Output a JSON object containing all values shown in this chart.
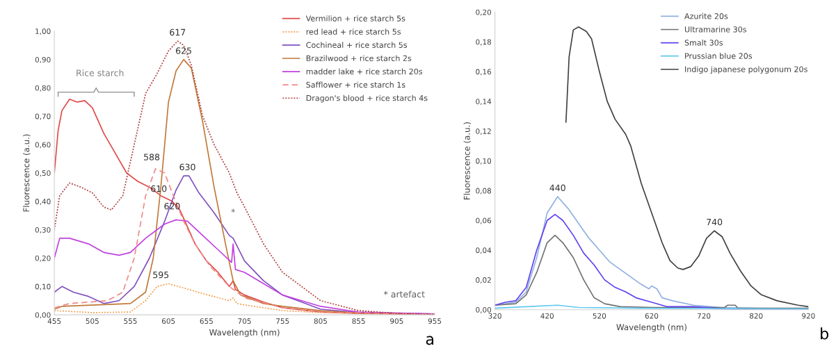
{
  "chart_data": [
    {
      "type": "line",
      "xlabel": "Wavelength (nm)",
      "ylabel": "Fluorescence (a.u.)",
      "xlim": [
        455,
        955
      ],
      "xticks": [
        455,
        505,
        555,
        605,
        655,
        705,
        755,
        805,
        855,
        905,
        955
      ],
      "ylim": [
        0,
        1.0
      ],
      "yticks": [
        {
          "value": 0,
          "label": "0,00"
        },
        {
          "value": 0.1,
          "label": "0,10"
        },
        {
          "value": 0.2,
          "label": "0,20"
        },
        {
          "value": 0.3,
          "label": "0,30"
        },
        {
          "value": 0.4,
          "label": "0,40"
        },
        {
          "value": 0.5,
          "label": "0,50"
        },
        {
          "value": 0.6,
          "label": "0,60"
        },
        {
          "value": 0.7,
          "label": "0,70"
        },
        {
          "value": 0.8,
          "label": "0,80"
        },
        {
          "value": 0.9,
          "label": "0,90"
        },
        {
          "value": 1.0,
          "label": "1,00"
        }
      ],
      "grid": false,
      "legend": "top right",
      "marker": "none",
      "series": [
        {
          "name": "Vermilion + rice starch 5s",
          "color": "#e04848",
          "line_style": "solid",
          "x": [
            455,
            460,
            465,
            475,
            485,
            495,
            505,
            520,
            535,
            550,
            565,
            580,
            595,
            610,
            620,
            630,
            640,
            655,
            670,
            685,
            690,
            693,
            705,
            730,
            755,
            805,
            855,
            955
          ],
          "values": [
            0.5,
            0.65,
            0.72,
            0.76,
            0.75,
            0.755,
            0.73,
            0.64,
            0.57,
            0.5,
            0.47,
            0.45,
            0.42,
            0.4,
            0.37,
            0.31,
            0.25,
            0.19,
            0.15,
            0.1,
            0.12,
            0.09,
            0.07,
            0.045,
            0.025,
            0.01,
            0.005,
            0.002
          ]
        },
        {
          "name": "red lead + rice starch 5s",
          "color": "#f0a050",
          "line_style": "dotted",
          "x": [
            455,
            505,
            555,
            575,
            590,
            605,
            625,
            650,
            685,
            690,
            695,
            705,
            755,
            805,
            955
          ],
          "values": [
            0.015,
            0.008,
            0.01,
            0.05,
            0.1,
            0.11,
            0.095,
            0.075,
            0.05,
            0.06,
            0.04,
            0.035,
            0.015,
            0.008,
            0.002
          ]
        },
        {
          "name": "Cochineal + rice starch 5s",
          "color": "#8050c0",
          "line_style": "solid",
          "x": [
            455,
            465,
            480,
            500,
            520,
            540,
            560,
            580,
            600,
            615,
            625,
            632,
            645,
            665,
            685,
            690,
            705,
            730,
            755,
            780,
            805,
            855,
            955
          ],
          "values": [
            0.08,
            0.1,
            0.08,
            0.065,
            0.04,
            0.05,
            0.1,
            0.2,
            0.33,
            0.44,
            0.49,
            0.49,
            0.43,
            0.36,
            0.28,
            0.27,
            0.19,
            0.12,
            0.07,
            0.045,
            0.02,
            0.008,
            0.003
          ]
        },
        {
          "name": "Brazilwood + rice starch 2s",
          "color": "#c07838",
          "line_style": "solid",
          "x": [
            455,
            465,
            555,
            575,
            585,
            595,
            605,
            615,
            625,
            635,
            650,
            665,
            680,
            690,
            700,
            730,
            755,
            805,
            855,
            955
          ],
          "values": [
            0.02,
            0.03,
            0.04,
            0.08,
            0.2,
            0.45,
            0.75,
            0.86,
            0.9,
            0.87,
            0.68,
            0.45,
            0.25,
            0.12,
            0.07,
            0.04,
            0.03,
            0.015,
            0.007,
            0.002
          ]
        },
        {
          "name": "madder lake + rice starch 20s",
          "color": "#c040e0",
          "line_style": "solid",
          "x": [
            455,
            462,
            475,
            500,
            520,
            540,
            555,
            575,
            600,
            615,
            630,
            650,
            670,
            688,
            690,
            693,
            705,
            730,
            755,
            780,
            805,
            855,
            955
          ],
          "values": [
            0.2,
            0.27,
            0.27,
            0.25,
            0.22,
            0.21,
            0.22,
            0.27,
            0.32,
            0.335,
            0.33,
            0.28,
            0.23,
            0.185,
            0.25,
            0.16,
            0.15,
            0.11,
            0.07,
            0.05,
            0.03,
            0.01,
            0.003
          ]
        },
        {
          "name": "Safflower + rice starch 1s",
          "color": "#f08888",
          "line_style": "dashed",
          "x": [
            455,
            475,
            525,
            545,
            560,
            575,
            588,
            600,
            610,
            625,
            640,
            660,
            685,
            705,
            755,
            805,
            955
          ],
          "values": [
            0.025,
            0.04,
            0.05,
            0.08,
            0.2,
            0.42,
            0.515,
            0.5,
            0.43,
            0.33,
            0.25,
            0.17,
            0.1,
            0.06,
            0.025,
            0.01,
            0.002
          ]
        },
        {
          "name": "Dragon's blood + rice starch 4s",
          "color": "#b04040",
          "line_style": "dotted",
          "x": [
            455,
            462,
            475,
            490,
            505,
            520,
            530,
            545,
            560,
            575,
            590,
            605,
            617,
            625,
            635,
            650,
            665,
            685,
            695,
            705,
            730,
            755,
            780,
            805,
            855,
            905,
            955
          ],
          "values": [
            0.3,
            0.42,
            0.465,
            0.45,
            0.43,
            0.38,
            0.37,
            0.42,
            0.6,
            0.78,
            0.85,
            0.93,
            0.965,
            0.95,
            0.88,
            0.7,
            0.6,
            0.5,
            0.43,
            0.38,
            0.25,
            0.15,
            0.1,
            0.05,
            0.015,
            0.005,
            0.002
          ]
        }
      ],
      "annotations": [
        {
          "text": "617",
          "x": 617,
          "y": 0.965
        },
        {
          "text": "625",
          "x": 625,
          "y": 0.9
        },
        {
          "text": "588",
          "x": 588,
          "y": 0.515
        },
        {
          "text": "630",
          "x": 630,
          "y": 0.49
        },
        {
          "text": "610",
          "x": 610,
          "y": 0.4
        },
        {
          "text": "620",
          "x": 620,
          "y": 0.335
        },
        {
          "text": "595",
          "x": 595,
          "y": 0.11
        },
        "*",
        "Rice starch",
        "* artefact",
        "a"
      ]
    },
    {
      "type": "line",
      "xlabel": "Wavelength (nm)",
      "ylabel": "Fluorescence (a.u.)",
      "xlim": [
        320,
        920
      ],
      "xticks": [
        320,
        420,
        520,
        620,
        720,
        820,
        920
      ],
      "ylim": [
        0,
        0.2
      ],
      "yticks": [
        {
          "value": 0,
          "label": "0,00"
        },
        {
          "value": 0.02,
          "label": "0,02"
        },
        {
          "value": 0.04,
          "label": "0,04"
        },
        {
          "value": 0.06,
          "label": "0,06"
        },
        {
          "value": 0.08,
          "label": "0,08"
        },
        {
          "value": 0.1,
          "label": "0,10"
        },
        {
          "value": 0.12,
          "label": "0,12"
        },
        {
          "value": 0.14,
          "label": "0,14"
        },
        {
          "value": 0.16,
          "label": "0,16"
        },
        {
          "value": 0.18,
          "label": "0,18"
        },
        {
          "value": 0.2,
          "label": "0,20"
        }
      ],
      "grid": false,
      "legend": "top right",
      "marker": "none",
      "series": [
        {
          "name": "Azurite 20s",
          "color": "#8fb0e0",
          "line_style": "solid",
          "x": [
            320,
            360,
            380,
            400,
            420,
            440,
            460,
            480,
            500,
            520,
            540,
            560,
            580,
            600,
            615,
            620,
            630,
            640,
            660,
            700,
            750,
            820,
            920
          ],
          "values": [
            0.003,
            0.005,
            0.012,
            0.035,
            0.065,
            0.076,
            0.068,
            0.058,
            0.048,
            0.04,
            0.032,
            0.027,
            0.022,
            0.017,
            0.014,
            0.016,
            0.014,
            0.008,
            0.006,
            0.003,
            0.0015,
            0.001,
            0.0005
          ]
        },
        {
          "name": "Ultramarine 30s",
          "color": "#707070",
          "line_style": "solid",
          "x": [
            320,
            360,
            380,
            400,
            420,
            435,
            450,
            470,
            490,
            510,
            530,
            560,
            620,
            720,
            760,
            765,
            780,
            785,
            920
          ],
          "values": [
            0.003,
            0.004,
            0.01,
            0.025,
            0.045,
            0.05,
            0.045,
            0.035,
            0.02,
            0.008,
            0.004,
            0.002,
            0.0015,
            0.0015,
            0.0015,
            0.003,
            0.003,
            0.001,
            0.001
          ]
        },
        {
          "name": "Smalt 30s",
          "color": "#6040f0",
          "line_style": "solid",
          "x": [
            320,
            340,
            360,
            380,
            400,
            420,
            435,
            450,
            470,
            490,
            510,
            530,
            550,
            570,
            590,
            620,
            650,
            700,
            760,
            800,
            920
          ],
          "values": [
            0.003,
            0.005,
            0.006,
            0.015,
            0.04,
            0.06,
            0.064,
            0.06,
            0.05,
            0.038,
            0.03,
            0.02,
            0.015,
            0.012,
            0.008,
            0.005,
            0.002,
            0.002,
            0.0005,
            0.0,
            0.0
          ]
        },
        {
          "name": "Prussian blue 20s",
          "color": "#60c8f0",
          "line_style": "solid",
          "x": [
            320,
            380,
            440,
            480,
            600,
            920
          ],
          "values": [
            0.001,
            0.002,
            0.003,
            0.0015,
            0.001,
            0.0005
          ]
        },
        {
          "name": "Indigo japanese polygonum 20s",
          "color": "#404040",
          "line_style": "solid",
          "x": [
            456,
            462,
            470,
            480,
            495,
            505,
            520,
            535,
            550,
            570,
            580,
            600,
            620,
            640,
            655,
            670,
            680,
            695,
            710,
            725,
            740,
            755,
            770,
            790,
            810,
            830,
            860,
            900,
            920
          ],
          "values": [
            0.126,
            0.17,
            0.188,
            0.19,
            0.187,
            0.182,
            0.16,
            0.14,
            0.128,
            0.118,
            0.11,
            0.085,
            0.065,
            0.045,
            0.033,
            0.028,
            0.027,
            0.029,
            0.036,
            0.048,
            0.053,
            0.049,
            0.038,
            0.026,
            0.016,
            0.01,
            0.006,
            0.003,
            0.002
          ]
        }
      ],
      "annotations": [
        {
          "text": "440",
          "x": 440,
          "y": 0.076
        },
        {
          "text": "740",
          "x": 740,
          "y": 0.053
        },
        "b"
      ]
    }
  ]
}
